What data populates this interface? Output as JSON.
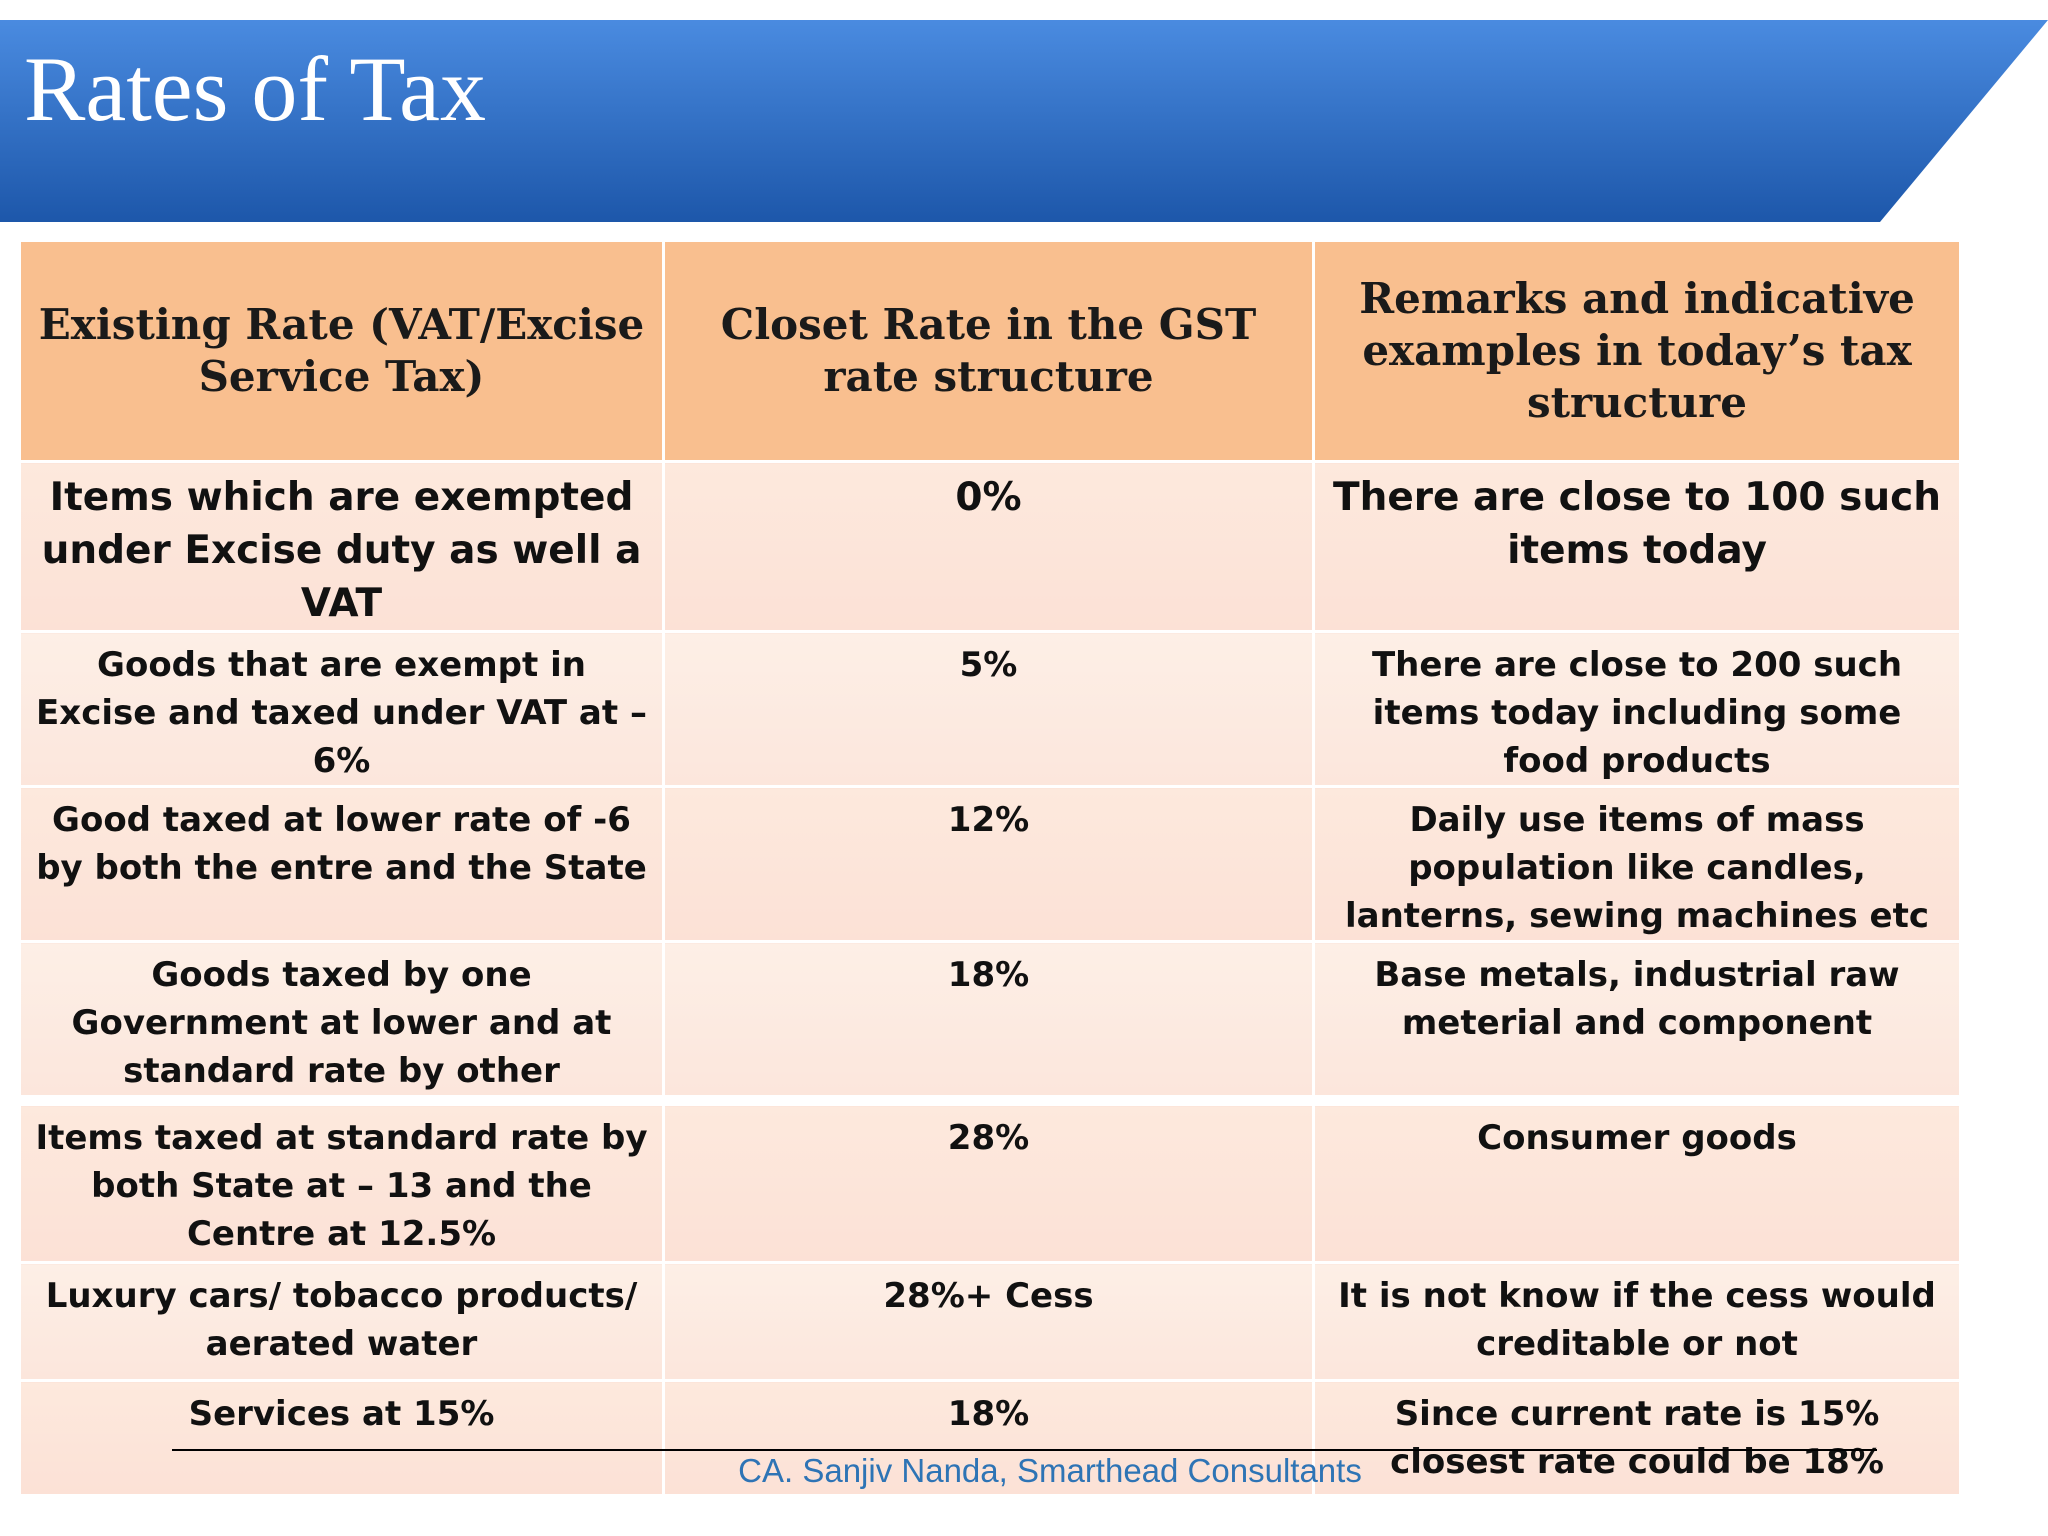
{
  "header": {
    "title": "Rates of Tax"
  },
  "table": {
    "columns": [
      "Existing Rate (VAT/Excise Service Tax)",
      "Closet Rate in the GST rate structure",
      "Remarks and indicative examples in today’s tax structure"
    ],
    "rows": [
      [
        "Items which are exempted under Excise duty as well a VAT",
        "0%",
        "There are close to 100 such items today"
      ],
      [
        "Goods that are exempt in Excise and taxed under VAT at – 6%",
        "5%",
        "There are close to 200 such items today including some food products"
      ],
      [
        "Good taxed at lower rate of -6 by both the entre and the State",
        "12%",
        "Daily use items of mass population like candles, lanterns, sewing machines etc"
      ],
      [
        "Goods taxed by one Government at lower and at standard rate by other",
        "18%",
        "Base metals, industrial raw meterial and component"
      ],
      [
        "Items taxed at standard rate by both State at – 13 and the Centre at 12.5%",
        "28%",
        "Consumer goods"
      ],
      [
        "Luxury cars/ tobacco products/ aerated water",
        "28%+ Cess",
        "It is not know if the cess would creditable or not"
      ],
      [
        "Services at 15%",
        "18%",
        "Since current rate is 15% closest rate could be 18%"
      ]
    ]
  },
  "footer": {
    "text": "CA. Sanjiv Nanda, Smarthead Consultants"
  }
}
